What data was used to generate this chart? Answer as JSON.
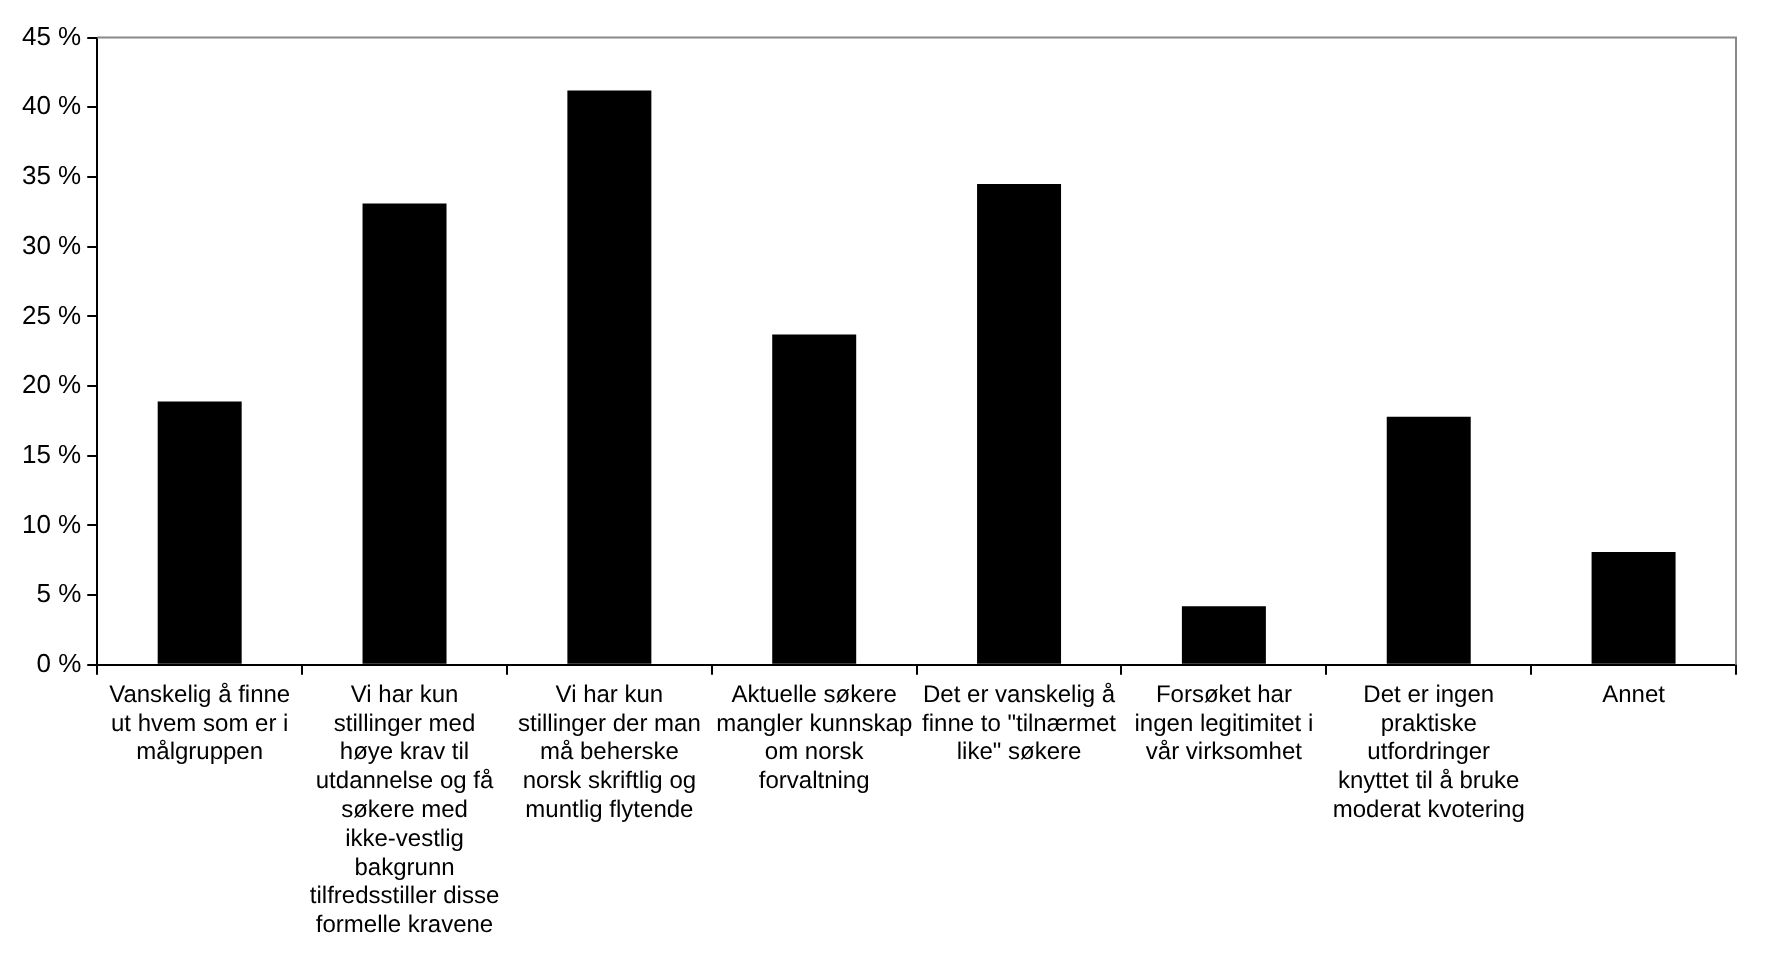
{
  "chart_data": {
    "type": "bar",
    "categories": [
      "Vanskelig å finne ut hvem som er i målgruppen",
      "Vi har kun stillinger med høye krav til utdannelse og få søkere med ikke-vestlig bakgrunn tilfredsstiller disse formelle kravene",
      "Vi har kun stillinger der man må beherske norsk skriftlig og muntlig flytende",
      "Aktuelle søkere mangler kunnskap om norsk forvaltning",
      "Det er vanskelig å finne to \"tilnærmet like\" søkere",
      "Forsøket har ingen legitimitet i vår virksomhet",
      "Det er ingen praktiske utfordringer knyttet til å bruke moderat kvotering",
      "Annet"
    ],
    "values": [
      18.9,
      33.1,
      41.2,
      23.7,
      34.5,
      4.2,
      17.8,
      8.1
    ],
    "color": "#000000",
    "ylim": [
      0,
      45
    ],
    "yticks": [
      {
        "value": 0,
        "label": "0 %"
      },
      {
        "value": 5,
        "label": "5 %"
      },
      {
        "value": 10,
        "label": "10 %"
      },
      {
        "value": 15,
        "label": "15 %"
      },
      {
        "value": 20,
        "label": "20 %"
      },
      {
        "value": 25,
        "label": "25 %"
      },
      {
        "value": 30,
        "label": "30 %"
      },
      {
        "value": 35,
        "label": "35 %"
      },
      {
        "value": 40,
        "label": "40 %"
      },
      {
        "value": 45,
        "label": "45 %"
      }
    ],
    "grid": false,
    "legend": false
  }
}
